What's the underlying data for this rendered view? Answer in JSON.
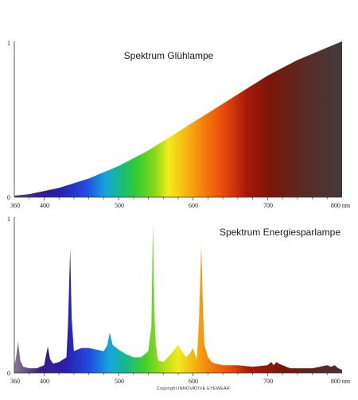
{
  "chart_data": [
    {
      "type": "area",
      "title": "Spektrum Glühlampe",
      "x_unit": "nm",
      "xlim": [
        360,
        800
      ],
      "ylim": [
        0,
        1
      ],
      "x_tick_labels": [
        "360",
        "400",
        "500",
        "600",
        "700",
        "800 nm"
      ],
      "y_tick_labels": [
        "0",
        "1"
      ],
      "x": [
        360,
        380,
        400,
        420,
        440,
        460,
        480,
        500,
        520,
        540,
        560,
        580,
        600,
        620,
        640,
        660,
        680,
        700,
        720,
        740,
        760,
        780,
        800
      ],
      "y": [
        0.01,
        0.02,
        0.04,
        0.06,
        0.09,
        0.12,
        0.16,
        0.2,
        0.25,
        0.3,
        0.36,
        0.42,
        0.48,
        0.54,
        0.6,
        0.66,
        0.72,
        0.78,
        0.83,
        0.88,
        0.92,
        0.96,
        1.0
      ],
      "fill": "visible-spectrum gradient"
    },
    {
      "type": "area",
      "title": "Spektrum Energiesparlampe",
      "x_unit": "nm",
      "xlim": [
        360,
        800
      ],
      "ylim": [
        0,
        1
      ],
      "x_tick_labels": [
        "360",
        "400",
        "500",
        "600",
        "700",
        "800 nm"
      ],
      "y_tick_labels": [
        "0",
        "1"
      ],
      "x": [
        360,
        362,
        365,
        368,
        372,
        380,
        390,
        400,
        402,
        405,
        408,
        412,
        420,
        430,
        432,
        435,
        437,
        440,
        445,
        450,
        460,
        470,
        480,
        485,
        488,
        492,
        500,
        510,
        520,
        530,
        540,
        544,
        546,
        548,
        550,
        553,
        560,
        570,
        580,
        585,
        590,
        595,
        600,
        605,
        608,
        611,
        613,
        615,
        620,
        625,
        630,
        640,
        650,
        660,
        680,
        700,
        705,
        708,
        712,
        715,
        720,
        730,
        740,
        760,
        770,
        780,
        785,
        790,
        795,
        800
      ],
      "y": [
        0.05,
        0.09,
        0.2,
        0.08,
        0.04,
        0.03,
        0.03,
        0.05,
        0.1,
        0.17,
        0.09,
        0.06,
        0.07,
        0.1,
        0.3,
        0.8,
        0.35,
        0.14,
        0.15,
        0.16,
        0.16,
        0.15,
        0.14,
        0.18,
        0.26,
        0.18,
        0.15,
        0.12,
        0.1,
        0.1,
        0.14,
        0.3,
        0.96,
        0.4,
        0.18,
        0.08,
        0.07,
        0.12,
        0.18,
        0.14,
        0.1,
        0.12,
        0.16,
        0.08,
        0.35,
        0.82,
        0.45,
        0.18,
        0.1,
        0.07,
        0.06,
        0.05,
        0.05,
        0.05,
        0.04,
        0.05,
        0.07,
        0.05,
        0.07,
        0.06,
        0.05,
        0.03,
        0.03,
        0.03,
        0.04,
        0.05,
        0.04,
        0.05,
        0.03,
        0.02
      ],
      "fill": "visible-spectrum gradient"
    }
  ],
  "credit": "Copyright INNOVATIVE EYEWEAR"
}
